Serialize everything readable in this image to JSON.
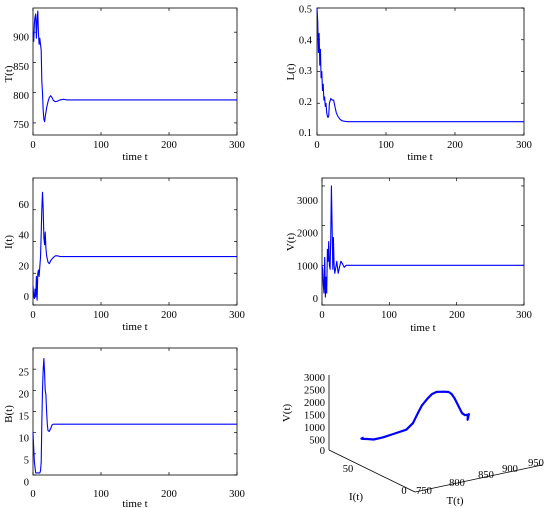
{
  "figure": {
    "line_color": "#0000ff"
  },
  "chart_data": [
    {
      "id": "T",
      "type": "line",
      "xlabel": "time t",
      "ylabel": "T(t)",
      "xlim": [
        0,
        300
      ],
      "ylim": [
        730,
        940
      ],
      "xticks": [
        0,
        100,
        200,
        300
      ],
      "yticks": [
        750,
        800,
        850,
        900
      ],
      "series": [
        {
          "x": [
            0,
            1,
            2,
            3,
            4,
            5,
            6,
            7,
            8,
            9,
            10,
            11,
            12,
            13,
            14,
            15,
            16,
            17,
            18,
            20,
            22,
            24,
            26,
            28,
            30,
            33,
            36,
            40,
            45,
            50,
            60,
            80,
            100,
            150,
            200,
            250,
            300
          ],
          "y": [
            900,
            885,
            915,
            925,
            930,
            890,
            920,
            935,
            900,
            880,
            890,
            880,
            870,
            820,
            800,
            770,
            756,
            752,
            760,
            775,
            785,
            792,
            795,
            792,
            787,
            785,
            786,
            788,
            789,
            788,
            788,
            788,
            788,
            788,
            788,
            788,
            788
          ]
        }
      ]
    },
    {
      "id": "L",
      "type": "line",
      "xlabel": "time t",
      "ylabel": "L(t)",
      "xlim": [
        0,
        300
      ],
      "ylim": [
        0.1,
        0.5
      ],
      "xticks": [
        0,
        100,
        200,
        300
      ],
      "yticks": [
        0.1,
        0.2,
        0.3,
        0.4,
        0.5
      ],
      "series": [
        {
          "x": [
            0,
            1,
            2,
            3,
            4,
            5,
            6,
            7,
            8,
            9,
            10,
            11,
            12,
            13,
            14,
            15,
            16,
            17,
            18,
            20,
            22,
            24,
            26,
            28,
            30,
            33,
            36,
            40,
            45,
            50,
            60,
            80,
            100,
            150,
            200,
            250,
            300
          ],
          "y": [
            0.5,
            0.46,
            0.36,
            0.42,
            0.32,
            0.37,
            0.28,
            0.3,
            0.24,
            0.26,
            0.21,
            0.22,
            0.19,
            0.2,
            0.17,
            0.16,
            0.155,
            0.16,
            0.2,
            0.215,
            0.21,
            0.21,
            0.19,
            0.17,
            0.16,
            0.15,
            0.145,
            0.143,
            0.142,
            0.142,
            0.142,
            0.142,
            0.142,
            0.142,
            0.142,
            0.142,
            0.142
          ]
        }
      ]
    },
    {
      "id": "I",
      "type": "line",
      "xlabel": "time t",
      "ylabel": "I(t)",
      "xlim": [
        0,
        300
      ],
      "ylim": [
        0,
        80
      ],
      "xticks": [
        0,
        100,
        200,
        300
      ],
      "yticks": [
        0,
        20,
        40,
        60
      ],
      "series": [
        {
          "x": [
            0,
            1,
            2,
            3,
            4,
            5,
            6,
            7,
            8,
            9,
            10,
            11,
            12,
            13,
            14,
            15,
            16,
            17,
            18,
            19,
            20,
            22,
            24,
            26,
            28,
            30,
            33,
            36,
            40,
            45,
            50,
            60,
            80,
            100,
            150,
            200,
            250,
            300
          ],
          "y": [
            12,
            6,
            4,
            10,
            5,
            18,
            3,
            20,
            22,
            18,
            24,
            30,
            45,
            60,
            71,
            60,
            42,
            38,
            46,
            36,
            31,
            27,
            26,
            28,
            29,
            30,
            31,
            31,
            30.5,
            30.5,
            30.5,
            30.5,
            30.5,
            30.5,
            30.5,
            30.5,
            30.5,
            30.5
          ]
        }
      ]
    },
    {
      "id": "V",
      "type": "line",
      "xlabel": "time t",
      "ylabel": "V(t)",
      "xlim": [
        0,
        300
      ],
      "ylim": [
        0,
        3200
      ],
      "xticks": [
        0,
        100,
        200,
        300
      ],
      "yticks": [
        0,
        1000,
        2000,
        3000
      ],
      "series": [
        {
          "x": [
            0,
            1,
            2,
            3,
            4,
            5,
            6,
            7,
            8,
            9,
            10,
            11,
            12,
            13,
            14,
            15,
            16,
            17,
            18,
            19,
            20,
            22,
            24,
            26,
            28,
            30,
            33,
            36,
            40,
            45,
            50,
            60,
            80,
            100,
            150,
            200,
            250,
            300
          ],
          "y": [
            1000,
            900,
            500,
            300,
            1200,
            200,
            700,
            300,
            1400,
            1100,
            1600,
            1000,
            900,
            1800,
            3000,
            2000,
            900,
            1700,
            1000,
            800,
            900,
            1100,
            800,
            950,
            1100,
            1050,
            950,
            1000,
            1000,
            1000,
            1000,
            1000,
            1000,
            1000,
            1000,
            1000,
            1000,
            1000
          ]
        }
      ]
    },
    {
      "id": "B",
      "type": "line",
      "xlabel": "time t",
      "ylabel": "B(t)",
      "xlim": [
        0,
        300
      ],
      "ylim": [
        0,
        30
      ],
      "xticks": [
        0,
        100,
        200,
        300
      ],
      "yticks": [
        0,
        5,
        10,
        15,
        20,
        25
      ],
      "series": [
        {
          "x": [
            0,
            2,
            4,
            6,
            8,
            10,
            11,
            12,
            13,
            14,
            15,
            16,
            17,
            18,
            19,
            20,
            21,
            22,
            24,
            26,
            28,
            30,
            33,
            36,
            40,
            45,
            50,
            60,
            80,
            100,
            150,
            200,
            250,
            300
          ],
          "y": [
            10,
            3,
            0.5,
            0.5,
            0.5,
            0.5,
            1,
            3,
            12,
            20,
            25,
            27.5,
            24,
            20,
            19,
            15,
            12,
            10.5,
            10.3,
            11,
            11.8,
            12,
            12,
            12,
            12,
            12,
            12,
            12,
            12,
            12,
            12,
            12,
            12,
            12
          ]
        }
      ]
    },
    {
      "id": "phase3d",
      "type": "line",
      "projection": "3d",
      "xlabel": "T(t)",
      "ylabel": "I(t)",
      "zlabel": "V(t)",
      "xlim": [
        750,
        950
      ],
      "ylim": [
        0,
        100
      ],
      "zlim": [
        0,
        3000
      ],
      "xticks": [
        750,
        800,
        850,
        900,
        950
      ],
      "yticks": [
        0,
        50
      ],
      "zticks": [
        0,
        500,
        1000,
        1500,
        2000,
        2500,
        3000
      ],
      "series": [
        {
          "x": [
            930,
            925,
            920,
            910,
            900,
            890,
            880,
            870,
            860,
            850,
            840,
            830,
            820,
            810,
            800,
            795,
            790,
            785,
            775,
            765,
            758,
            755,
            753,
            755,
            760
          ],
          "y": [
            30,
            32,
            36,
            40,
            44,
            47,
            50,
            54,
            58,
            60,
            63,
            66,
            68,
            70,
            71,
            70,
            68,
            64,
            58,
            52,
            46,
            41,
            37,
            34,
            33
          ],
          "z": [
            1000,
            800,
            1100,
            1200,
            1400,
            1800,
            2200,
            2500,
            2700,
            2800,
            2900,
            3000,
            3000,
            2900,
            2700,
            2400,
            2000,
            1700,
            1500,
            1300,
            1150,
            1100,
            1050,
            1000,
            1000
          ]
        }
      ]
    }
  ]
}
